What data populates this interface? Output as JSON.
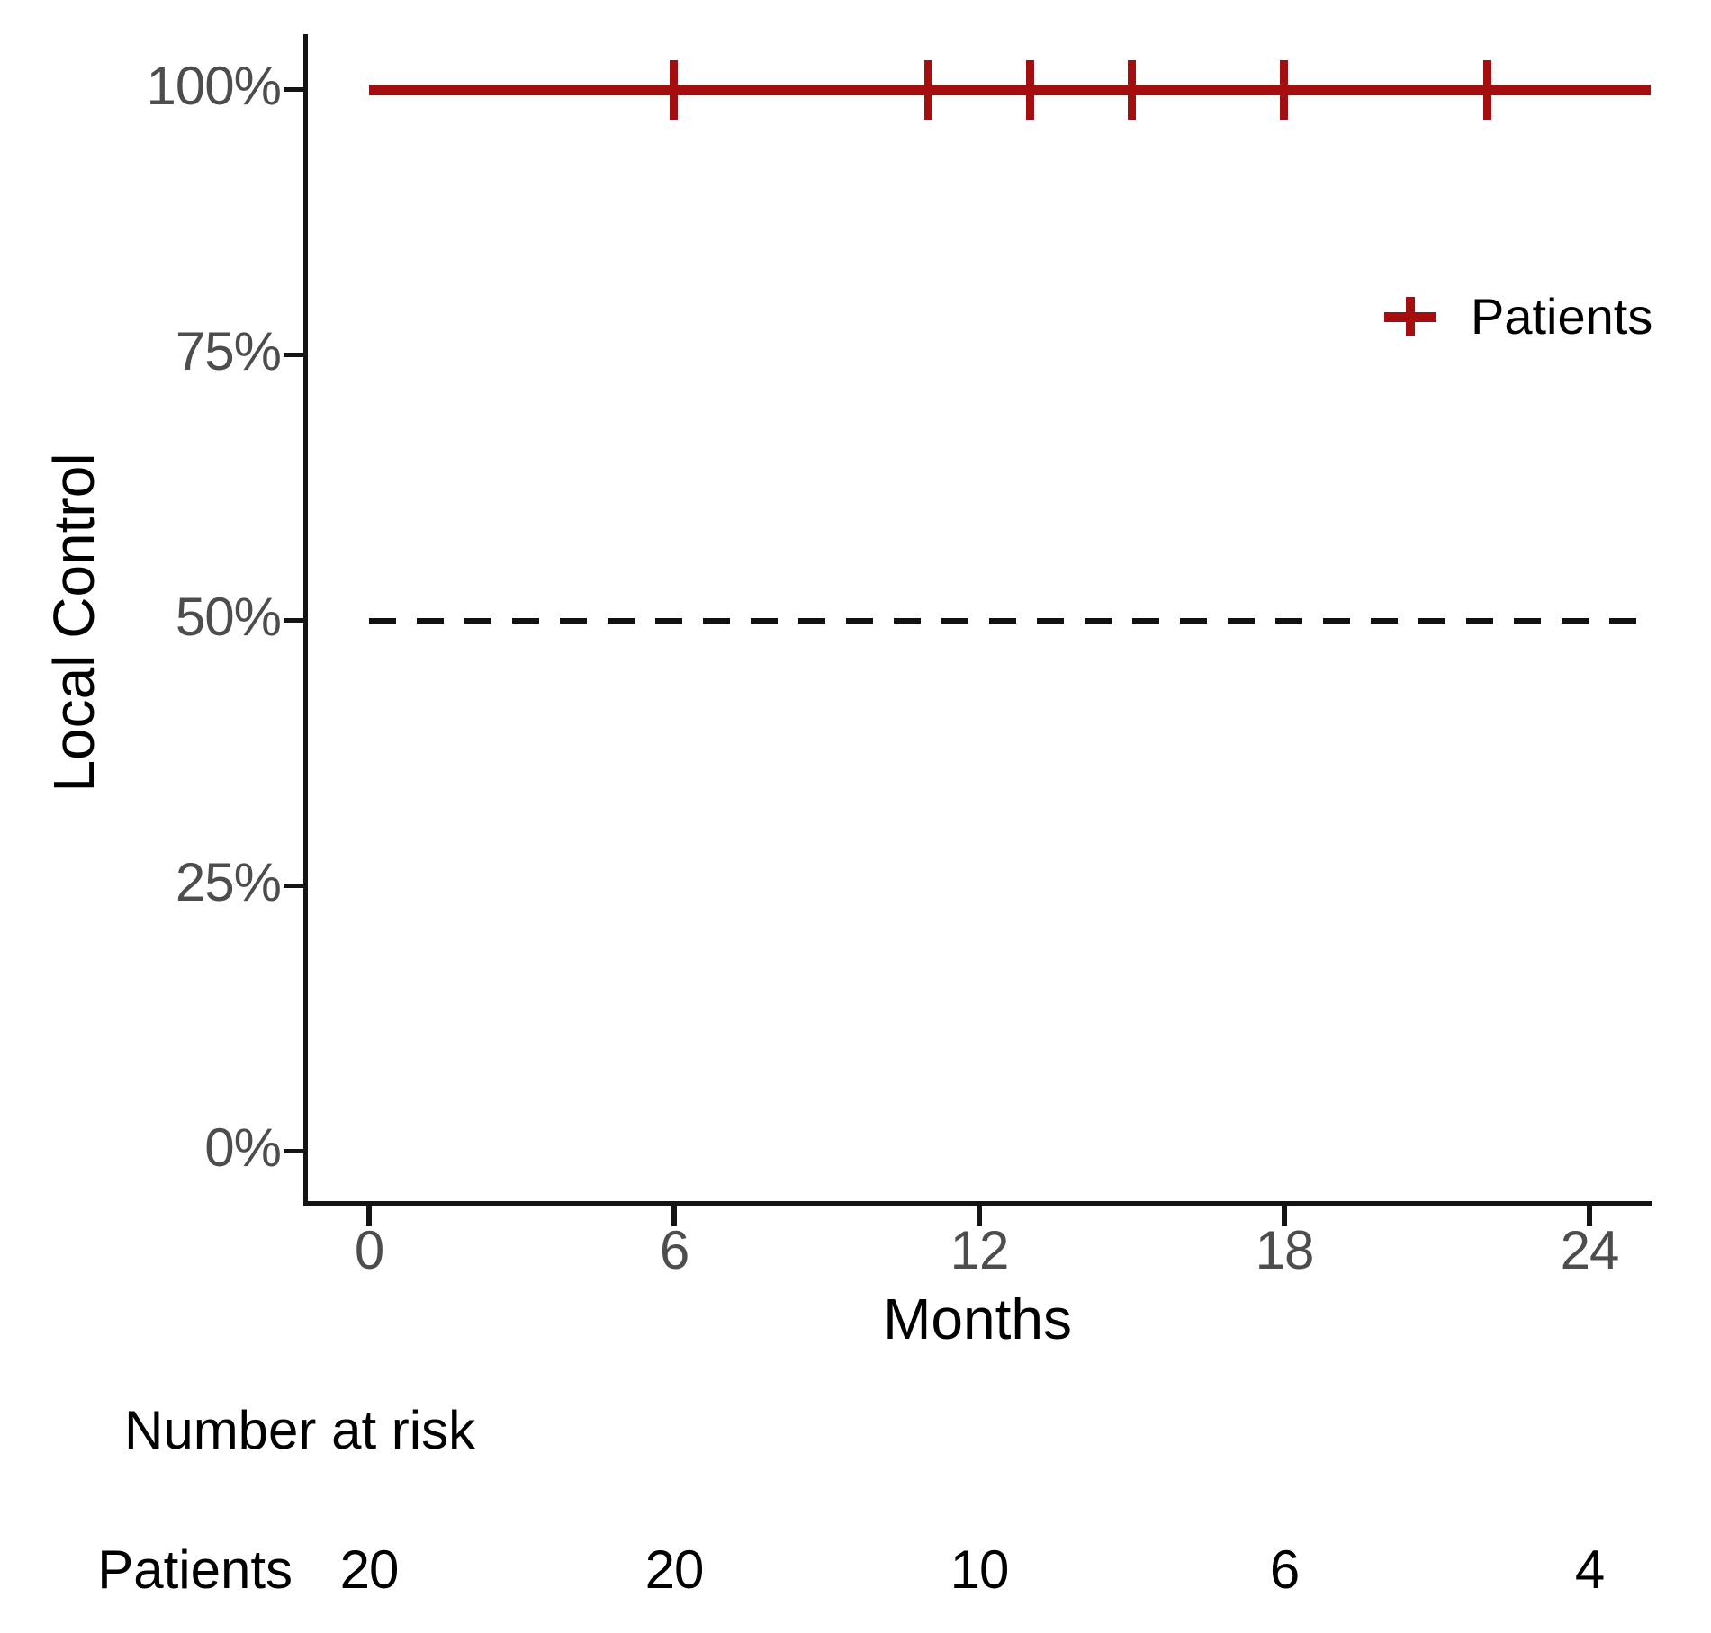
{
  "figure": {
    "background": "#ffffff",
    "accent_red": "#A40E0E",
    "axis_color": "#141414",
    "tick_label_color": "#4d4d4d"
  },
  "chart_data": {
    "type": "line",
    "subtype": "kaplan-meier-survival-curve",
    "title": "",
    "xlabel": "Months",
    "ylabel": "Local Control",
    "x_ticks": [
      0,
      6,
      12,
      18,
      24
    ],
    "x_tick_labels": [
      "0",
      "6",
      "12",
      "18",
      "24"
    ],
    "y_ticks": [
      0,
      25,
      50,
      75,
      100
    ],
    "y_tick_labels": [
      "0%",
      "25%",
      "50%",
      "75%",
      "100%"
    ],
    "xlim": [
      -1.3,
      25.2
    ],
    "ylim": [
      0,
      100
    ],
    "grid": "off",
    "series": [
      {
        "name": "Patients",
        "color": "#A40E0E",
        "step_points": [
          {
            "x": 0,
            "y": 100
          },
          {
            "x": 25.2,
            "y": 100
          }
        ],
        "censor_times_months": [
          6,
          11,
          13,
          15,
          18,
          22
        ]
      }
    ],
    "reference_line": {
      "y": 50,
      "x_start": 0,
      "x_end": 25.2,
      "style": "dashed",
      "color": "#111111"
    },
    "legend": {
      "position": "right-upper",
      "entries": [
        {
          "label": "Patients",
          "marker": "plus-cross",
          "color": "#A40E0E"
        }
      ]
    },
    "risk_table": {
      "title": "Number at risk",
      "time_points": [
        0,
        6,
        12,
        18,
        24
      ],
      "rows": [
        {
          "label": "Patients",
          "values": [
            "20",
            "20",
            "10",
            "6",
            "4"
          ]
        }
      ]
    }
  }
}
